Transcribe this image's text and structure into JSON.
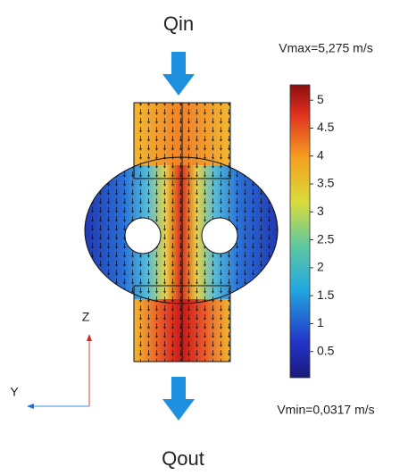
{
  "labels": {
    "inlet": "Qin",
    "outlet": "Qout",
    "vmax": "Vmax=5,275 m/s",
    "vmin": "Vmin=0,0317 m/s",
    "axis_z": "Z",
    "axis_y": "Y"
  },
  "colorbar": {
    "range": [
      0.0317,
      5.275
    ],
    "ticks": [
      5,
      4.5,
      4,
      3.5,
      3,
      2.5,
      2,
      1.5,
      1,
      0.5
    ]
  }
}
